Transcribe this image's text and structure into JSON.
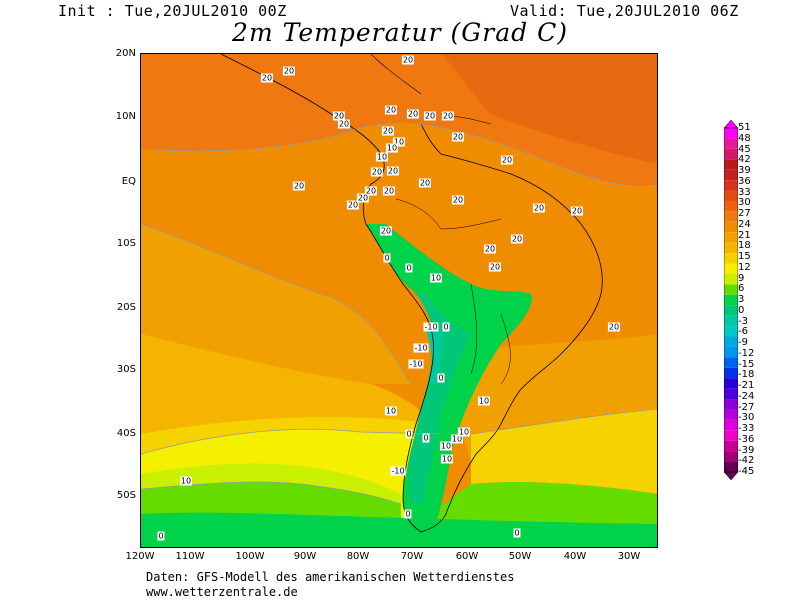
{
  "header": {
    "init": "Init : Tue,20JUL2010 00Z",
    "valid": "Valid: Tue,20JUL2010 06Z",
    "title": "2m Temperatur (Grad C)"
  },
  "map": {
    "lat_labels": [
      "20N",
      "10N",
      "EQ",
      "10S",
      "20S",
      "30S",
      "40S",
      "50S"
    ],
    "lon_labels": [
      "120W",
      "110W",
      "100W",
      "90W",
      "80W",
      "70W",
      "60W",
      "50W",
      "40W",
      "30W"
    ],
    "contour_labels": [
      "20",
      "20",
      "20",
      "20",
      "20",
      "20",
      "20",
      "20",
      "20",
      "20",
      "20",
      "20",
      "10",
      "10",
      "10",
      "20",
      "20",
      "20",
      "20",
      "20",
      "20",
      "20",
      "20",
      "20",
      "0",
      "0",
      "10",
      "20",
      "20",
      "20",
      "20",
      "20",
      "20",
      "-10",
      "0",
      "-10",
      "-10",
      "0",
      "10",
      "10",
      "0",
      "0",
      "10",
      "10",
      "10",
      "10",
      "-10",
      "0",
      "10",
      "0",
      "0",
      "20"
    ]
  },
  "legend": {
    "labels": [
      "51",
      "48",
      "45",
      "42",
      "39",
      "36",
      "33",
      "30",
      "27",
      "24",
      "21",
      "18",
      "15",
      "12",
      "9",
      "6",
      "3",
      "0",
      "-3",
      "-6",
      "-9",
      "-12",
      "-15",
      "-18",
      "-21",
      "-24",
      "-27",
      "-30",
      "-33",
      "-36",
      "-39",
      "-42",
      "-45"
    ],
    "colors": [
      "#ff00ff",
      "#e8189b",
      "#d2196a",
      "#b71c1c",
      "#c62020",
      "#d83218",
      "#e64a10",
      "#f06010",
      "#f07810",
      "#f08c00",
      "#f0a000",
      "#f5b400",
      "#f5d200",
      "#f5f000",
      "#c8f000",
      "#64dc00",
      "#00d24a",
      "#00c878",
      "#00c8a0",
      "#00c8c8",
      "#00aadc",
      "#0096f0",
      "#0064f0",
      "#0032e6",
      "#2800dc",
      "#5000dc",
      "#8c00dc",
      "#b400dc",
      "#dc00dc",
      "#f000c8",
      "#c80096",
      "#a00078",
      "#640050"
    ]
  },
  "source": {
    "line1": "Daten: GFS-Modell des amerikanischen Wetterdienstes",
    "line2": "www.wetterzentrale.de"
  }
}
